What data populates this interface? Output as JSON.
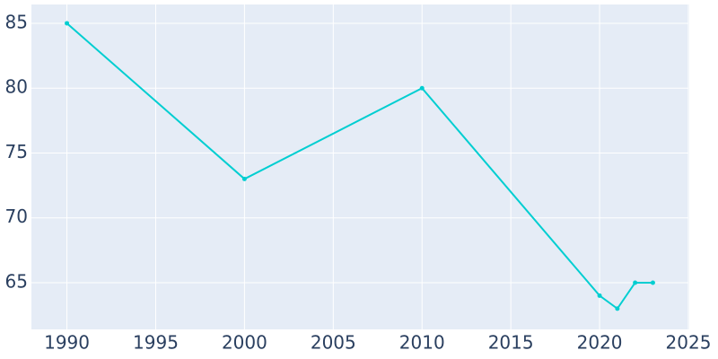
{
  "chart_data": {
    "type": "line",
    "x": [
      1990,
      2000,
      2010,
      2020,
      2021,
      2022,
      2023
    ],
    "series": [
      {
        "color": "#00ced1",
        "values": [
          85,
          73,
          80,
          64,
          63,
          65,
          65
        ]
      }
    ],
    "xlim": [
      1988,
      2025
    ],
    "xticks": [
      1990,
      1995,
      2000,
      2005,
      2010,
      2015,
      2020,
      2025
    ],
    "ylim": [
      61.4,
      86.45
    ],
    "yticks": [
      65,
      70,
      75,
      80,
      85
    ],
    "grid": true,
    "background": "#e5ecf6"
  }
}
